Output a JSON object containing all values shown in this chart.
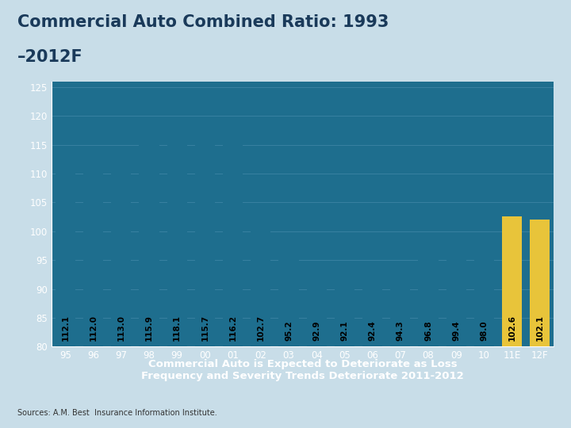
{
  "categories": [
    "95",
    "96",
    "97",
    "98",
    "99",
    "00",
    "01",
    "02",
    "03",
    "04",
    "05",
    "06",
    "07",
    "08",
    "09",
    "10",
    "11E",
    "12F"
  ],
  "values": [
    112.1,
    112.0,
    113.0,
    115.9,
    118.1,
    115.7,
    116.2,
    102.7,
    95.2,
    92.9,
    92.1,
    92.4,
    94.3,
    96.8,
    99.4,
    98.0,
    102.6,
    102.1
  ],
  "bar_color_normal": "#1e6e8e",
  "bar_color_forecast": "#e8c43a",
  "forecast_indices": [
    16,
    17
  ],
  "title_line1": "Commercial Auto Combined Ratio: 1993",
  "title_line2": "–2012F",
  "subtitle": "Commercial Auto is Expected to Deteriorate as Loss\nFrequency and Severity Trends Deteriorate 2011-2012",
  "source": "Sources: A.M. Best  Insurance Information Institute.",
  "ylim": [
    80,
    126
  ],
  "yticks": [
    80,
    85,
    90,
    95,
    100,
    105,
    110,
    115,
    120,
    125
  ],
  "plot_bg_color": "#1e6e8e",
  "title_bg_color_top": "#c8dfe8",
  "title_bg_color_bottom": "#a0c8d8",
  "subtitle_bg_color": "#e05a00",
  "page_bg_color": "#c8dde8",
  "label_color": "#000000",
  "title_color": "#1a3a5a",
  "subtitle_color": "#ffffff",
  "source_color": "#333333",
  "grid_color": "#4a8eae",
  "tick_color": "#ffffff"
}
